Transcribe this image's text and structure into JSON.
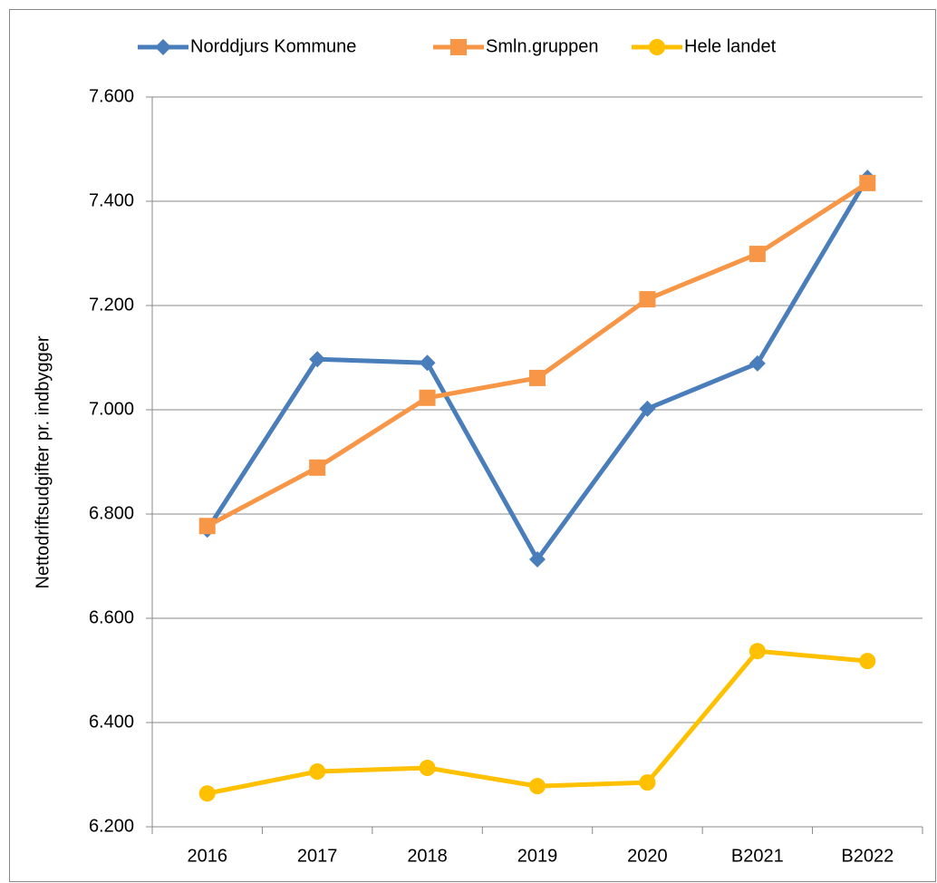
{
  "chart_data": {
    "type": "line",
    "y_label": "Nettodriftsudgifter pr. indbygger",
    "categories": [
      "2016",
      "2017",
      "2018",
      "2019",
      "2020",
      "B2021",
      "B2022"
    ],
    "series": [
      {
        "name": "Norddjurs Kommune",
        "color": "#4a7ebb",
        "marker": "diamond",
        "values": [
          6770,
          7097,
          7090,
          6713,
          7002,
          7089,
          7445
        ]
      },
      {
        "name": "Smln.gruppen",
        "color": "#f79646",
        "marker": "square",
        "values": [
          6777,
          6889,
          7023,
          7061,
          7212,
          7299,
          7435
        ]
      },
      {
        "name": "Hele landet",
        "color": "#ffc000",
        "marker": "circle",
        "values": [
          6264,
          6306,
          6313,
          6278,
          6285,
          6537,
          6518
        ]
      }
    ],
    "ylim": [
      6200,
      7600
    ],
    "yticks": [
      {
        "value": 6200,
        "label": "6.200"
      },
      {
        "value": 6400,
        "label": "6.400"
      },
      {
        "value": 6600,
        "label": "6.600"
      },
      {
        "value": 6800,
        "label": "6.800"
      },
      {
        "value": 7000,
        "label": "7.000"
      },
      {
        "value": 7200,
        "label": "7.200"
      },
      {
        "value": 7400,
        "label": "7.400"
      },
      {
        "value": 7600,
        "label": "7.600"
      }
    ],
    "grid": true,
    "legend": "top"
  }
}
